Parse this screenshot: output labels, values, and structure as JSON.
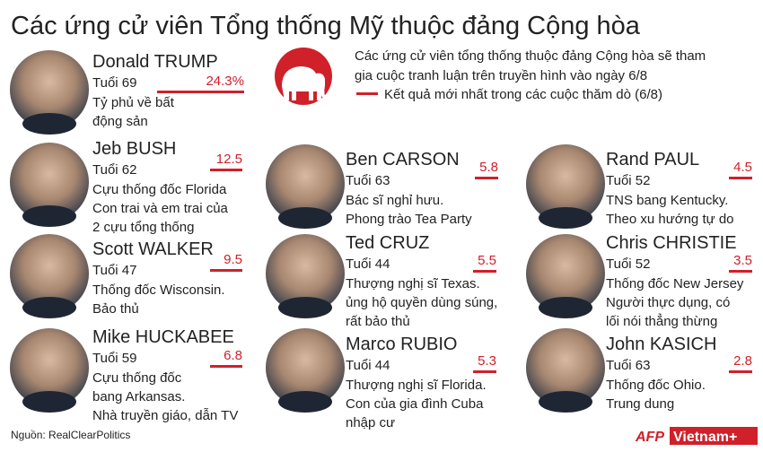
{
  "title": "Các ứng cử viên Tổng thống Mỹ thuộc đảng Cộng hòa",
  "intro": [
    "Các ứng cử viên tổng thống thuộc đảng Cộng hòa sẽ tham",
    "gia cuộc tranh luận trên truyền hình vào ngày 6/8"
  ],
  "legend": "Kết quả mới nhất trong các cuộc thăm dò (6/8)",
  "candidates": [
    {
      "name": "Donald TRUMP",
      "age": "Tuổi 69",
      "lines": [
        "Tỷ phủ về bất",
        "động sản"
      ],
      "poll": {
        "value": 24.3,
        "label": "24.3%"
      }
    },
    {
      "name": "Jeb BUSH",
      "age": "Tuổi 62",
      "lines": [
        "Cựu thống đốc Florida",
        "Con trai và em trai của",
        "2 cựu tổng thống"
      ],
      "poll": 12.5
    },
    {
      "name": "Scott WALKER",
      "age": "Tuổi 47",
      "lines": [
        "Thống đốc Wisconsin.",
        "Bảo thủ"
      ],
      "poll": 9.5
    },
    {
      "name": "Mike HUCKABEE",
      "age": "Tuổi 59",
      "lines": [
        "Cựu thống đốc",
        "bang Arkansas.",
        "Nhà truyền giáo, dẫn TV"
      ],
      "poll": 6.8
    },
    {
      "name": "Ben CARSON",
      "age": "Tuổi 63",
      "lines": [
        "Bác sĩ nghỉ hưu.",
        "Phong trào Tea Party"
      ],
      "poll": 5.8
    },
    {
      "name": "Ted CRUZ",
      "age": "Tuổi 44",
      "lines": [
        "Thượng nghị sĩ Texas.",
        "ủng hộ quyền dùng súng,",
        "rất bảo thủ"
      ],
      "poll": 5.5
    },
    {
      "name": "Marco RUBIO",
      "age": "Tuổi 44",
      "lines": [
        "Thượng nghị sĩ Florida.",
        "Con của gia đình Cuba",
        "nhập cư"
      ],
      "poll": 5.3
    },
    {
      "name": "Rand PAUL",
      "age": "Tuổi 52",
      "lines": [
        "TNS bang Kentucky.",
        "Theo xu hướng tự do"
      ],
      "poll": 4.5
    },
    {
      "name": "Chris CHRISTIE",
      "age": "Tuổi 52",
      "lines": [
        "Thống đốc New Jersey",
        "Người thực dụng, có",
        "lối nói thẳng thừng"
      ],
      "poll": 3.5
    },
    {
      "name": "John KASICH",
      "age": "Tuổi 63",
      "lines": [
        "Thống đốc Ohio.",
        "Trung dung"
      ],
      "poll": 2.8
    }
  ],
  "source": "Nguồn: RealClearPolitics",
  "logo": {
    "afp": "AFP",
    "brand": "Vietnam+"
  }
}
